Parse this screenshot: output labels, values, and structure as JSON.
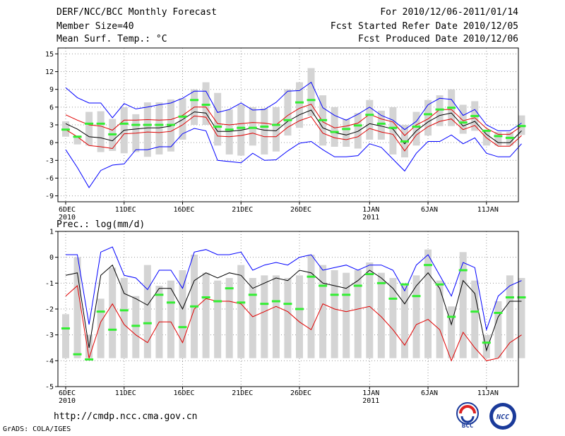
{
  "header": {
    "title": "DERF/NCC/BCC Monthly Forecast",
    "member_size": "Member Size=40",
    "variable": "Mean Surf. Temp.: °C",
    "period": "For 2010/12/06-2011/01/14",
    "started": "Fcst Started Refer Date 2010/12/05",
    "produced": "Fcst Produced Date 2010/12/06"
  },
  "footer": {
    "url": "http://cmdp.ncc.cma.gov.cn",
    "grads": "GrADS: COLA/IGES",
    "logo_left": "BCC",
    "logo_right": "NCC"
  },
  "colors": {
    "max": "#0000ff",
    "min": "#e00000",
    "box": "#d4d4d4",
    "median": "#33ee33",
    "mean": "#000000"
  },
  "chart_data": [
    {
      "type": "line",
      "title": "Mean Surf. Temp.: °C",
      "ylim": [
        -10,
        16
      ],
      "yticks": [
        -9,
        -6,
        -3,
        0,
        3,
        6,
        9,
        12,
        15
      ],
      "x_tick_labels": [
        {
          "label": "6DEC",
          "sub": "2010",
          "index": 0
        },
        {
          "label": "11DEC",
          "sub": "",
          "index": 5
        },
        {
          "label": "16DEC",
          "sub": "",
          "index": 10
        },
        {
          "label": "21DEC",
          "sub": "",
          "index": 15
        },
        {
          "label": "26DEC",
          "sub": "",
          "index": 20
        },
        {
          "label": "1JAN",
          "sub": "2011",
          "index": 26
        },
        {
          "label": "6JAN",
          "sub": "",
          "index": 31
        },
        {
          "label": "11JAN",
          "sub": "",
          "index": 36
        }
      ],
      "series": [
        {
          "name": "max",
          "values": [
            9.3,
            7.6,
            6.7,
            6.7,
            4.2,
            6.6,
            5.7,
            6.0,
            6.4,
            6.7,
            7.5,
            8.7,
            8.7,
            5.1,
            5.6,
            6.7,
            5.5,
            5.6,
            6.8,
            8.7,
            8.8,
            10.2,
            5.9,
            4.6,
            3.8,
            4.8,
            6.0,
            4.6,
            3.8,
            2.2,
            3.6,
            6.4,
            7.5,
            7.3,
            4.6,
            5.6,
            3.0,
            2.0,
            2.0,
            3.3
          ]
        },
        {
          "name": "q_upper",
          "values": [
            4.7,
            3.8,
            3.0,
            2.8,
            2.1,
            3.8,
            3.8,
            3.9,
            3.8,
            3.9,
            4.6,
            6.0,
            6.0,
            3.2,
            3.0,
            3.2,
            3.4,
            3.3,
            3.0,
            4.6,
            5.8,
            6.5,
            3.5,
            2.5,
            2.8,
            3.3,
            4.8,
            4.0,
            3.5,
            1.2,
            3.0,
            4.0,
            5.6,
            5.6,
            3.7,
            4.2,
            2.4,
            1.4,
            1.4,
            2.8
          ]
        },
        {
          "name": "mean",
          "values": [
            3.2,
            2.3,
            1.0,
            0.8,
            0.3,
            2.1,
            2.3,
            2.5,
            2.5,
            2.8,
            3.9,
            5.2,
            5.0,
            1.9,
            1.9,
            2.1,
            2.5,
            2.1,
            2.0,
            3.6,
            4.7,
            5.5,
            2.5,
            1.7,
            1.3,
            1.9,
            3.2,
            2.8,
            2.3,
            -0.2,
            2.0,
            3.5,
            4.6,
            5.0,
            2.8,
            3.6,
            1.4,
            0.0,
            0.0,
            2.0
          ]
        },
        {
          "name": "q_lower",
          "values": [
            2.2,
            1.0,
            -0.5,
            -0.7,
            -1.0,
            1.5,
            1.6,
            1.8,
            1.7,
            1.9,
            3.0,
            4.5,
            4.3,
            1.1,
            1.0,
            1.2,
            1.6,
            1.0,
            1.0,
            2.6,
            3.7,
            4.4,
            1.6,
            0.8,
            0.5,
            1.0,
            2.4,
            1.8,
            1.4,
            -1.4,
            1.3,
            2.7,
            3.6,
            4.0,
            2.2,
            2.9,
            0.8,
            -0.6,
            -0.6,
            1.2
          ]
        },
        {
          "name": "min",
          "values": [
            -1.2,
            -4.2,
            -7.6,
            -4.7,
            -3.8,
            -3.6,
            -1.2,
            -1.2,
            -0.7,
            -0.7,
            1.5,
            2.4,
            2.0,
            -3.0,
            -3.2,
            -3.4,
            -1.8,
            -3.0,
            -2.9,
            -1.4,
            -0.1,
            0.2,
            -1.2,
            -2.4,
            -2.4,
            -2.2,
            -0.2,
            -0.8,
            -2.8,
            -4.8,
            -1.8,
            0.2,
            0.2,
            1.3,
            -0.2,
            0.8,
            -1.8,
            -2.4,
            -2.4,
            -0.2
          ]
        },
        {
          "name": "box_top",
          "values": [
            3.6,
            1.2,
            5.2,
            5.3,
            4.0,
            6.0,
            4.8,
            6.8,
            6.8,
            7.3,
            7.5,
            9.0,
            10.2,
            8.4,
            5.6,
            6.4,
            6.0,
            5.8,
            6.0,
            9.0,
            10.2,
            12.6,
            8.0,
            6.0,
            4.0,
            5.0,
            7.2,
            5.4,
            6.0,
            3.0,
            5.2,
            7.2,
            8.0,
            9.0,
            6.4,
            7.0,
            2.2,
            1.8,
            1.8,
            4.6
          ]
        },
        {
          "name": "box_bottom",
          "values": [
            1.0,
            -0.3,
            -0.5,
            -1.6,
            -1.4,
            -1.8,
            -1.6,
            -2.4,
            -2.0,
            -1.5,
            0.5,
            3.0,
            3.0,
            -0.5,
            -2.0,
            -2.2,
            -0.5,
            -2.0,
            -1.5,
            1.2,
            2.5,
            4.5,
            -0.5,
            -0.7,
            -0.7,
            -1.0,
            0.5,
            0.5,
            -2.0,
            -2.5,
            -0.5,
            1.2,
            2.8,
            2.8,
            1.5,
            2.0,
            -0.5,
            -0.5,
            -0.5,
            1.3
          ]
        },
        {
          "name": "median",
          "values": [
            2.2,
            1.0,
            3.2,
            3.2,
            1.4,
            3.2,
            3.0,
            3.0,
            3.0,
            3.0,
            4.4,
            7.2,
            6.4,
            2.7,
            2.2,
            2.5,
            2.5,
            2.7,
            3.0,
            3.8,
            6.8,
            7.2,
            3.8,
            1.8,
            2.3,
            2.9,
            4.7,
            3.2,
            2.5,
            0.2,
            2.7,
            4.8,
            5.6,
            5.9,
            3.4,
            4.5,
            2.0,
            1.1,
            0.8,
            2.8
          ]
        }
      ]
    },
    {
      "type": "line",
      "title": "Prec.: log(mm/d)",
      "ylim": [
        -5,
        1
      ],
      "yticks": [
        -5,
        -4,
        -3,
        -2,
        -1,
        0,
        1
      ],
      "x_tick_labels": [
        {
          "label": "6DEC",
          "sub": "2010",
          "index": 0
        },
        {
          "label": "11DEC",
          "sub": "",
          "index": 5
        },
        {
          "label": "16DEC",
          "sub": "",
          "index": 10
        },
        {
          "label": "21DEC",
          "sub": "",
          "index": 15
        },
        {
          "label": "26DEC",
          "sub": "",
          "index": 20
        },
        {
          "label": "1JAN",
          "sub": "2011",
          "index": 26
        },
        {
          "label": "6JAN",
          "sub": "",
          "index": 31
        },
        {
          "label": "11JAN",
          "sub": "",
          "index": 36
        }
      ],
      "series": [
        {
          "name": "max",
          "values": [
            0.1,
            0.1,
            -2.6,
            0.2,
            0.4,
            -0.7,
            -0.8,
            -1.25,
            -0.5,
            -0.5,
            -1.2,
            0.2,
            0.3,
            0.1,
            0.1,
            0.2,
            -0.5,
            -0.3,
            -0.2,
            -0.3,
            0.0,
            0.1,
            -0.5,
            -0.4,
            -0.3,
            -0.5,
            -0.3,
            -0.3,
            -0.5,
            -1.3,
            -0.3,
            0.1,
            -0.7,
            -1.5,
            -0.2,
            -0.4,
            -2.8,
            -1.5,
            -1.1,
            -0.9
          ]
        },
        {
          "name": "mean",
          "values": [
            -0.7,
            -0.6,
            -3.5,
            -0.7,
            -0.3,
            -1.4,
            -1.6,
            -1.85,
            -1.2,
            -1.2,
            -2.0,
            -0.9,
            -0.6,
            -0.8,
            -0.6,
            -0.7,
            -1.2,
            -1.0,
            -0.8,
            -0.9,
            -0.5,
            -0.6,
            -1.0,
            -1.1,
            -1.2,
            -0.9,
            -0.5,
            -0.8,
            -1.2,
            -1.8,
            -1.1,
            -0.6,
            -1.2,
            -2.6,
            -0.9,
            -1.4,
            -3.6,
            -2.3,
            -1.7,
            -1.7
          ]
        },
        {
          "name": "min",
          "values": [
            -1.5,
            -1.1,
            -3.9,
            -2.5,
            -1.8,
            -2.6,
            -3.0,
            -3.3,
            -2.5,
            -2.5,
            -3.3,
            -2.0,
            -1.6,
            -1.7,
            -1.7,
            -1.8,
            -2.3,
            -2.1,
            -1.9,
            -2.1,
            -2.5,
            -2.8,
            -1.8,
            -2.0,
            -2.1,
            -2.0,
            -1.9,
            -2.3,
            -2.8,
            -3.4,
            -2.6,
            -2.4,
            -2.8,
            -4.0,
            -2.9,
            -3.5,
            -4.0,
            -3.9,
            -3.3,
            -3.0
          ]
        },
        {
          "name": "box_top",
          "values": [
            -2.2,
            0.0,
            -3.0,
            -1.6,
            -0.4,
            -0.8,
            -1.5,
            -0.3,
            -1.1,
            -0.9,
            -0.5,
            0.1,
            -0.6,
            -0.9,
            -0.8,
            -0.3,
            -0.8,
            -0.7,
            -0.7,
            -0.8,
            -0.7,
            0.1,
            -0.3,
            -0.5,
            -0.6,
            -0.5,
            -0.2,
            -0.6,
            -0.8,
            -1.1,
            -0.7,
            0.3,
            -0.9,
            -1.9,
            0.2,
            -0.9,
            -3.0,
            -1.7,
            -0.7,
            -0.8
          ]
        },
        {
          "name": "box_bottom",
          "values": [
            -3.9,
            -3.9,
            -3.9,
            -3.9,
            -3.9,
            -3.9,
            -3.9,
            -3.9,
            -3.9,
            -3.9,
            -3.9,
            -3.9,
            -3.9,
            -3.9,
            -3.9,
            -3.9,
            -3.9,
            -3.9,
            -3.9,
            -3.9,
            -3.9,
            -3.9,
            -3.9,
            -3.9,
            -3.9,
            -3.9,
            -3.9,
            -3.9,
            -3.9,
            -3.9,
            -3.9,
            -3.9,
            -3.9,
            -3.9,
            -3.9,
            -3.9,
            -3.9,
            -3.9,
            -3.9,
            -3.9
          ]
        },
        {
          "name": "median",
          "values": [
            -2.75,
            -3.75,
            -3.95,
            -2.1,
            -2.8,
            -2.05,
            -2.65,
            -2.55,
            -1.45,
            -1.75,
            -2.7,
            -1.9,
            -1.55,
            -1.7,
            -1.2,
            -1.75,
            -1.45,
            -1.8,
            -1.7,
            -1.8,
            -2.0,
            -0.75,
            -1.1,
            -1.45,
            -1.45,
            -1.1,
            -0.65,
            -1.0,
            -1.6,
            -1.05,
            -1.5,
            -0.3,
            -1.05,
            -2.3,
            -0.5,
            -2.1,
            -3.3,
            -2.15,
            -1.55,
            -1.55
          ]
        }
      ]
    }
  ]
}
